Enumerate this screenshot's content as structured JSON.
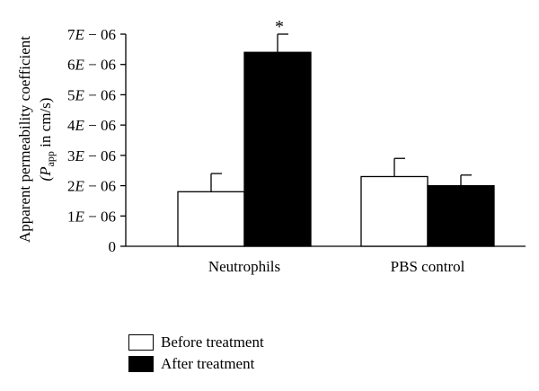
{
  "chart_data": {
    "type": "bar",
    "categories": [
      "Neutrophils",
      "PBS control"
    ],
    "series": [
      {
        "name": "Before treatment",
        "values": [
          1.8e-06,
          2.3e-06
        ],
        "errors": [
          6e-07,
          6e-07
        ],
        "color": "#ffffff"
      },
      {
        "name": "After treatment",
        "values": [
          6.4e-06,
          2e-06
        ],
        "errors": [
          6e-07,
          3.5e-07
        ],
        "color": "#000000"
      }
    ],
    "ylabel_line1": "Apparent permeability coefficient",
    "ylabel_line2_prefix": "(P",
    "ylabel_line2_sub": "app",
    "ylabel_line2_suffix": " in cm/s)",
    "ylim": [
      0,
      7e-06
    ],
    "yticks": [
      {
        "value": 0,
        "parts": [
          "0"
        ]
      },
      {
        "value": 1e-06,
        "parts": [
          "1",
          "E",
          " − 06"
        ]
      },
      {
        "value": 2e-06,
        "parts": [
          "2",
          "E",
          " − 06"
        ]
      },
      {
        "value": 3e-06,
        "parts": [
          "3",
          "E",
          " − 06"
        ]
      },
      {
        "value": 4e-06,
        "parts": [
          "4",
          "E",
          " − 06"
        ]
      },
      {
        "value": 5e-06,
        "parts": [
          "5",
          "E",
          " − 06"
        ]
      },
      {
        "value": 6e-06,
        "parts": [
          "6",
          "E",
          " − 06"
        ]
      },
      {
        "value": 7e-06,
        "parts": [
          "7",
          "E",
          " − 06"
        ]
      }
    ],
    "annotations": [
      {
        "category": "Neutrophils",
        "series": "After treatment",
        "text": "*"
      }
    ],
    "legend_position": "bottom-left"
  },
  "legend": {
    "before_label": "Before treatment",
    "after_label": "After treatment",
    "before_color": "#ffffff",
    "after_color": "#000000"
  }
}
